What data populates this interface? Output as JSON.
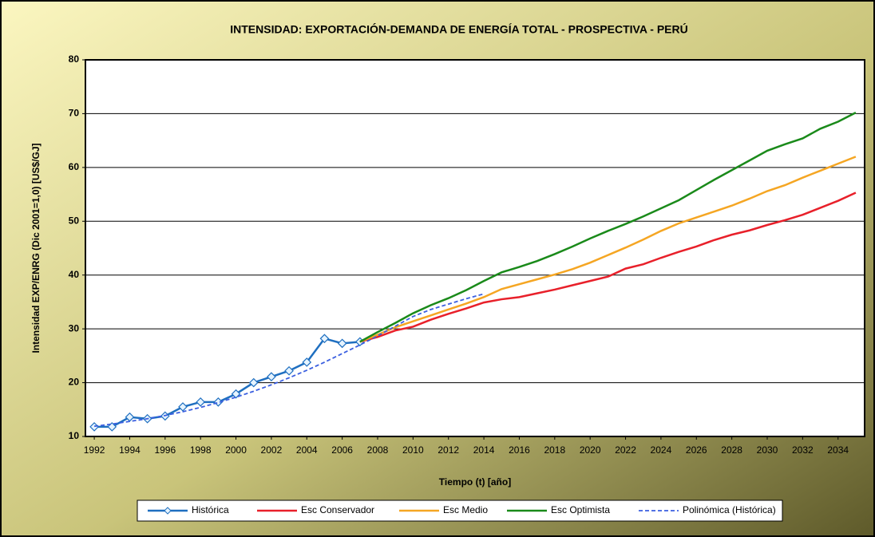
{
  "chart_data": {
    "type": "line",
    "title": "INTENSIDAD: EXPORTACIÓN-DEMANDA DE ENERGÍA TOTAL - PROSPECTIVA - PERÚ",
    "xlabel": "Tiempo (t) [año]",
    "ylabel": "Intensidad EXP/ENRG (Dic 2001=1,0) [US$/GJ]",
    "xlim": [
      1991.5,
      2035.5
    ],
    "xticks": [
      1992,
      1994,
      1996,
      1998,
      2000,
      2002,
      2004,
      2006,
      2008,
      2010,
      2012,
      2014,
      2016,
      2018,
      2020,
      2022,
      2024,
      2026,
      2028,
      2030,
      2032,
      2034
    ],
    "ylim": [
      10,
      80
    ],
    "yticks": [
      10,
      20,
      30,
      40,
      50,
      60,
      70,
      80
    ],
    "grid": true,
    "legend": "bottom",
    "series": [
      {
        "name": "Histórica",
        "color": "#1f6fc0",
        "marker": "diamond",
        "x": [
          1992,
          1993,
          1994,
          1995,
          1996,
          1997,
          1998,
          1999,
          2000,
          2001,
          2002,
          2003,
          2004,
          2005,
          2006,
          2007
        ],
        "values": [
          11.8,
          11.8,
          13.6,
          13.3,
          13.8,
          15.5,
          16.4,
          16.4,
          17.9,
          20.0,
          21.1,
          22.2,
          23.8,
          28.2,
          27.3,
          27.6
        ]
      },
      {
        "name": "Esc Conservador",
        "color": "#e8202a",
        "x": [
          2007,
          2008,
          2009,
          2010,
          2011,
          2012,
          2013,
          2014,
          2015,
          2016,
          2017,
          2018,
          2019,
          2020,
          2021,
          2022,
          2023,
          2024,
          2025,
          2026,
          2027,
          2028,
          2029,
          2030,
          2031,
          2032,
          2033,
          2034,
          2035
        ],
        "values": [
          27.6,
          28.5,
          29.7,
          30.4,
          31.7,
          32.8,
          33.8,
          34.9,
          35.5,
          35.9,
          36.6,
          37.3,
          38.1,
          38.9,
          39.7,
          41.2,
          42.0,
          43.2,
          44.3,
          45.3,
          46.5,
          47.5,
          48.3,
          49.3,
          50.2,
          51.2,
          52.5,
          53.8,
          55.3
        ]
      },
      {
        "name": "Esc Medio",
        "color": "#f5a623",
        "x": [
          2007,
          2008,
          2009,
          2010,
          2011,
          2012,
          2013,
          2014,
          2015,
          2016,
          2017,
          2018,
          2019,
          2020,
          2021,
          2022,
          2023,
          2024,
          2025,
          2026,
          2027,
          2028,
          2029,
          2030,
          2031,
          2032,
          2033,
          2034,
          2035
        ],
        "values": [
          27.6,
          28.9,
          30.3,
          31.4,
          32.5,
          33.6,
          34.7,
          35.9,
          37.4,
          38.3,
          39.2,
          40.1,
          41.1,
          42.3,
          43.7,
          45.1,
          46.6,
          48.2,
          49.6,
          50.7,
          51.8,
          52.9,
          54.2,
          55.6,
          56.7,
          58.1,
          59.4,
          60.7,
          62.0
        ]
      },
      {
        "name": "Esc Optimista",
        "color": "#1a8a1a",
        "x": [
          2007,
          2008,
          2009,
          2010,
          2011,
          2012,
          2013,
          2014,
          2015,
          2016,
          2017,
          2018,
          2019,
          2020,
          2021,
          2022,
          2023,
          2024,
          2025,
          2026,
          2027,
          2028,
          2029,
          2030,
          2031,
          2032,
          2033,
          2034,
          2035
        ],
        "values": [
          27.6,
          29.4,
          31.1,
          32.9,
          34.4,
          35.7,
          37.2,
          38.9,
          40.5,
          41.5,
          42.6,
          43.9,
          45.3,
          46.8,
          48.2,
          49.5,
          50.9,
          52.4,
          53.9,
          55.8,
          57.7,
          59.5,
          61.3,
          63.1,
          64.3,
          65.4,
          67.2,
          68.5,
          70.2
        ]
      },
      {
        "name": "Polinómica (Histórica)",
        "color": "#3b5fe0",
        "line_style": "dashed",
        "x": [
          1992,
          1993,
          1994,
          1995,
          1996,
          1997,
          1998,
          1999,
          2000,
          2001,
          2002,
          2003,
          2004,
          2005,
          2006,
          2007,
          2008,
          2009,
          2010,
          2011,
          2012,
          2013,
          2014
        ],
        "values": [
          11.9,
          12.3,
          12.8,
          13.3,
          13.9,
          14.6,
          15.4,
          16.3,
          17.3,
          18.4,
          19.6,
          20.9,
          22.3,
          23.8,
          25.4,
          27.0,
          28.7,
          30.5,
          32.3,
          33.6,
          34.6,
          35.6,
          36.5
        ]
      }
    ]
  }
}
